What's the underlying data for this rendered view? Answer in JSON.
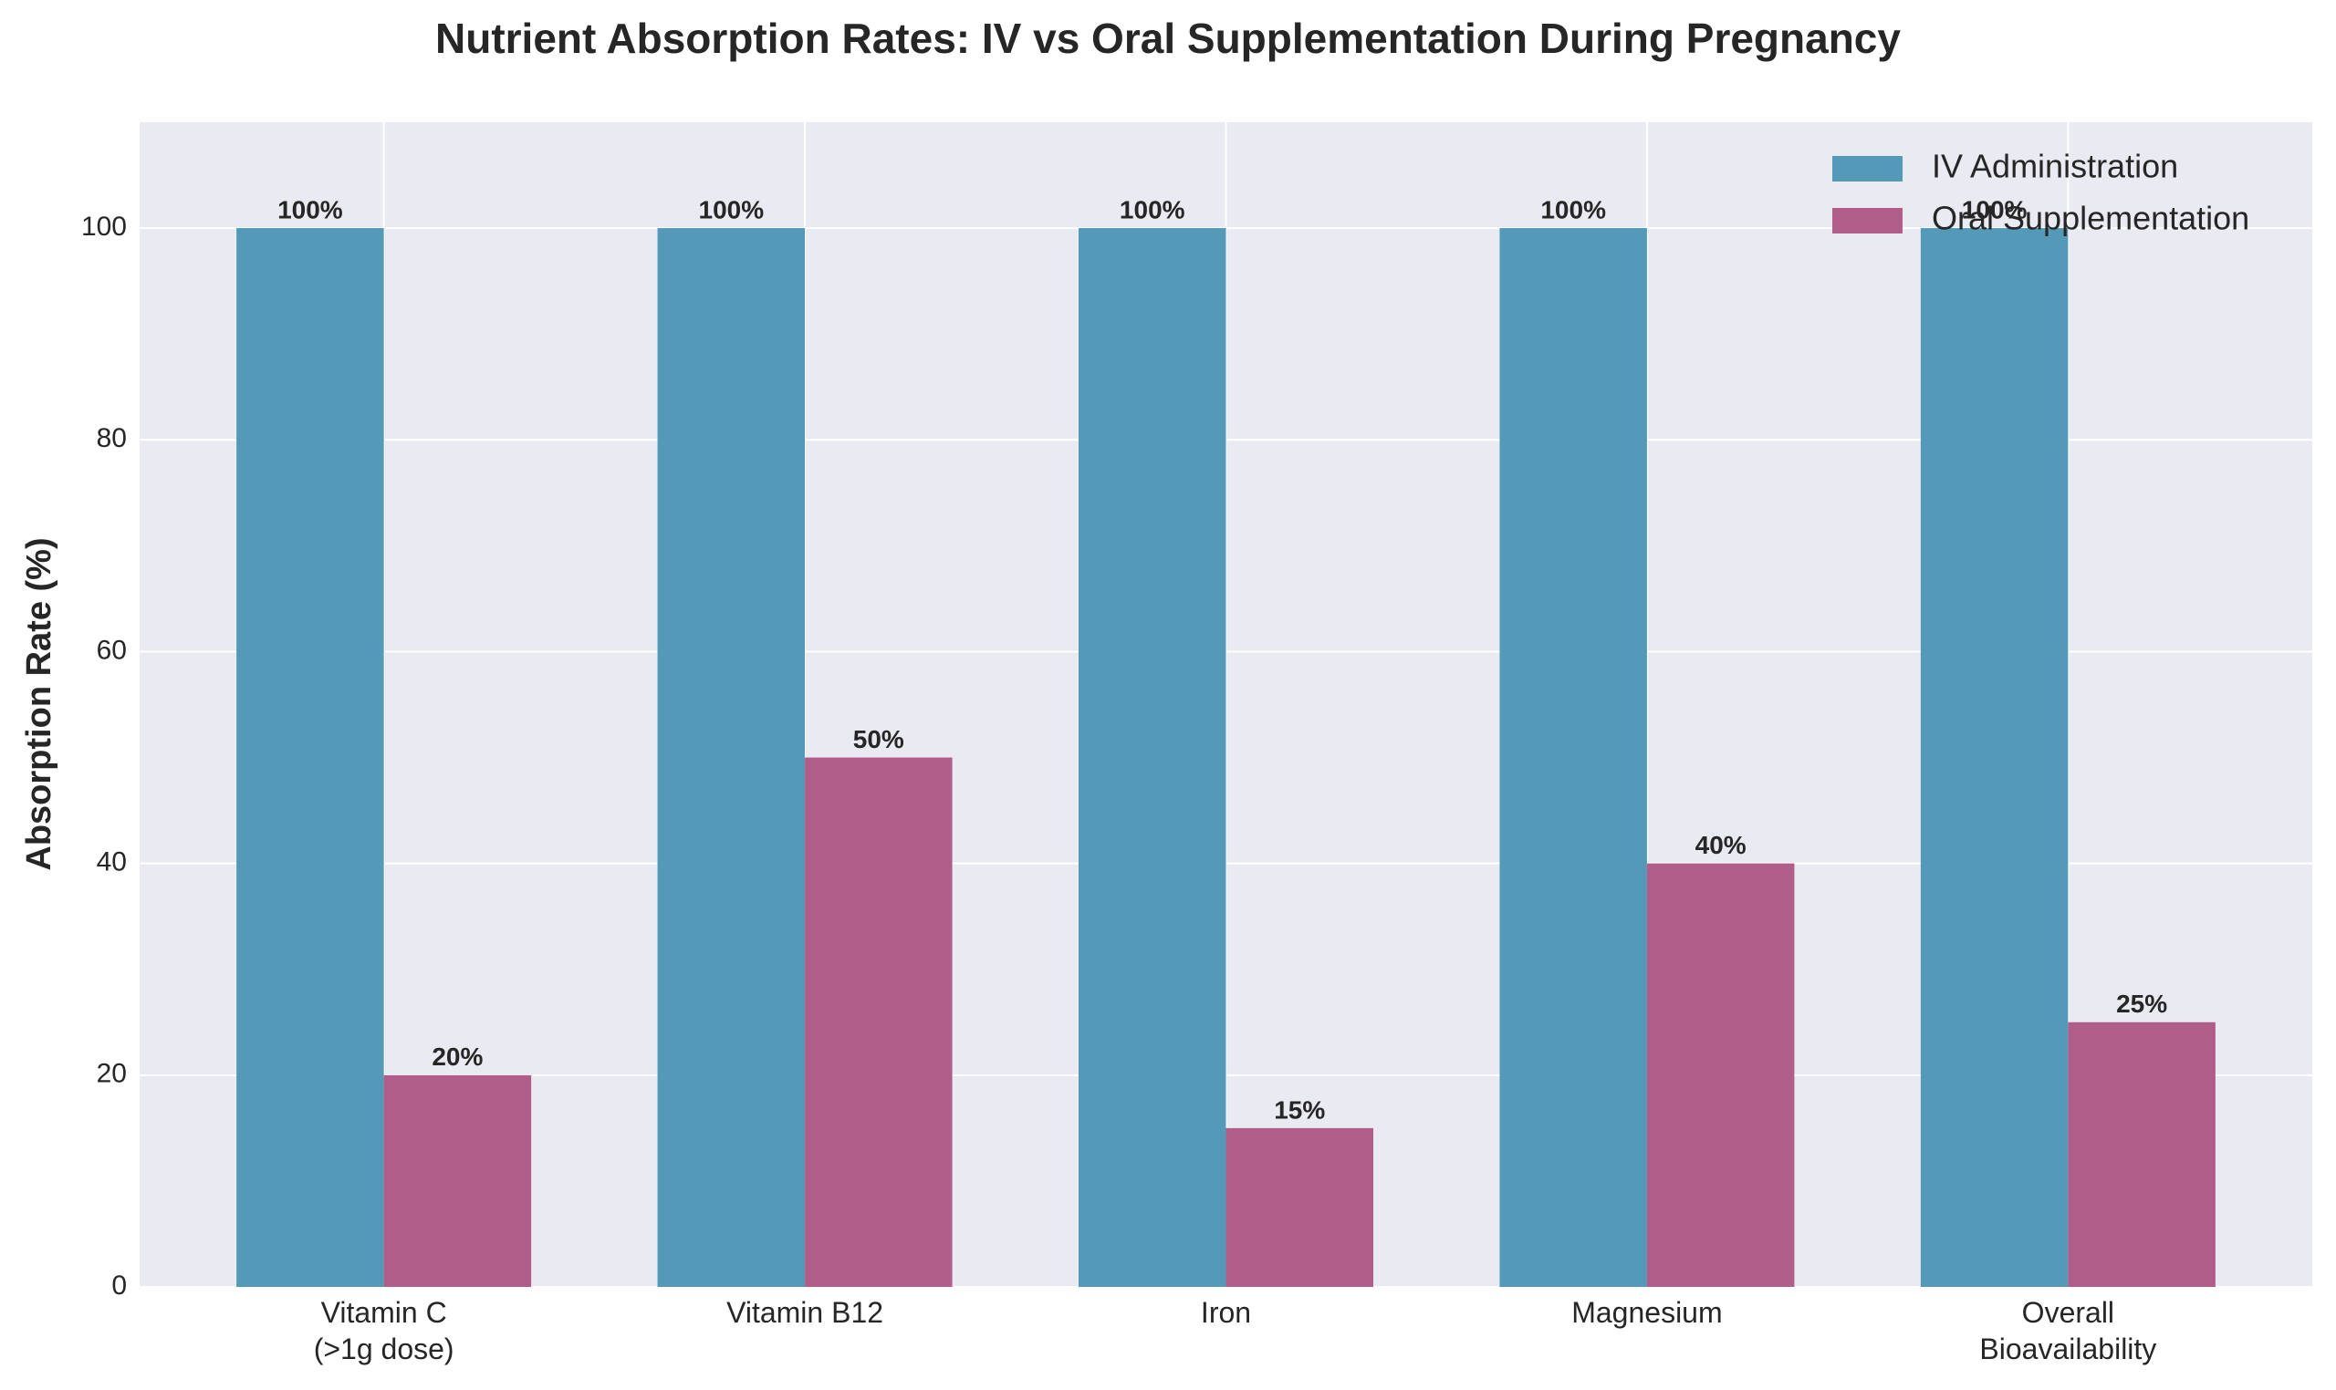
{
  "chart_data": {
    "type": "bar",
    "title": "Nutrient Absorption Rates: IV vs Oral Supplementation During Pregnancy",
    "y_label": "Absorption Rate (%)",
    "categories": [
      "Vitamin C\n(>1g dose)",
      "Vitamin B12",
      "Iron",
      "Magnesium",
      "Overall\nBioavailability"
    ],
    "series": [
      {
        "name": "IV Administration",
        "color": "#5499b8",
        "values": [
          100,
          100,
          100,
          100,
          100
        ],
        "value_labels": [
          "100%",
          "100%",
          "100%",
          "100%",
          "100%"
        ]
      },
      {
        "name": "Oral Supplementation",
        "color": "#b05e89",
        "values": [
          20,
          50,
          15,
          40,
          25
        ],
        "value_labels": [
          "20%",
          "50%",
          "15%",
          "40%",
          "25%"
        ]
      }
    ],
    "ylim": [
      0,
      110
    ],
    "yticks": [
      0,
      20,
      40,
      60,
      80,
      100
    ],
    "grid": true,
    "legend": "upper right"
  }
}
